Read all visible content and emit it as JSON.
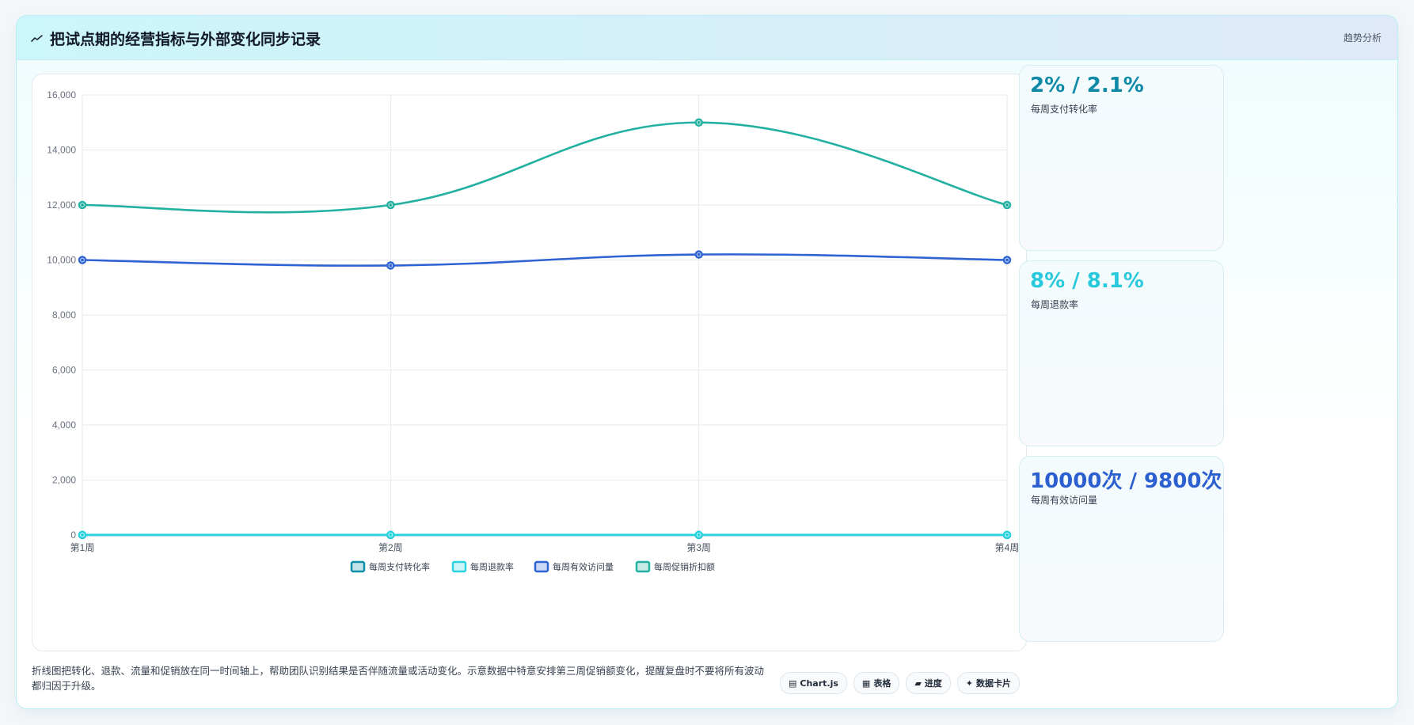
{
  "header": {
    "title": "把试点期的经营指标与外部变化同步记录",
    "tag": "趋势分析"
  },
  "chart_data": {
    "type": "line",
    "categories": [
      "第1周",
      "第2周",
      "第3周",
      "第4周"
    ],
    "ylim": [
      0,
      16000
    ],
    "yticks": [
      0,
      2000,
      4000,
      6000,
      8000,
      10000,
      12000,
      14000,
      16000
    ],
    "ytick_labels": [
      "0",
      "2,000",
      "4,000",
      "6,000",
      "8,000",
      "10,000",
      "12,000",
      "14,000",
      "16,000"
    ],
    "grid": true,
    "legend_position": "bottom",
    "series": [
      {
        "name": "每周支付转化率",
        "values": [
          2,
          2.1,
          2,
          2
        ],
        "color": "#0e8fa8"
      },
      {
        "name": "每周退款率",
        "values": [
          8,
          8.1,
          8,
          8
        ],
        "color": "#2ad3e0"
      },
      {
        "name": "每周有效访问量",
        "values": [
          10000,
          9800,
          10200,
          10000
        ],
        "color": "#2f63d3"
      },
      {
        "name": "每周促销折扣额",
        "values": [
          12000,
          12000,
          15000,
          12000
        ],
        "color": "#22b0a0"
      }
    ]
  },
  "kpis": [
    {
      "value": "2% / 2.1%",
      "label": "每周支付转化率",
      "color": "#0e8aa6"
    },
    {
      "value": "8% / 8.1%",
      "label": "每周退款率",
      "color": "#29c9dc"
    },
    {
      "value": "10000次 / 9800次",
      "label": "每周有效访问量",
      "color": "#2c5fd0"
    }
  ],
  "description": "折线图把转化、退款、流量和促销放在同一时间轴上，帮助团队识别结果是否伴随流量或活动变化。示意数据中特意安排第三周促销额变化，提醒复盘时不要将所有波动都归因于升级。",
  "chips": [
    {
      "icon": "chart-icon",
      "label": "Chart.js"
    },
    {
      "icon": "table-icon",
      "label": "表格"
    },
    {
      "icon": "progress-icon",
      "label": "进度"
    },
    {
      "icon": "card-icon",
      "label": "数据卡片"
    }
  ]
}
